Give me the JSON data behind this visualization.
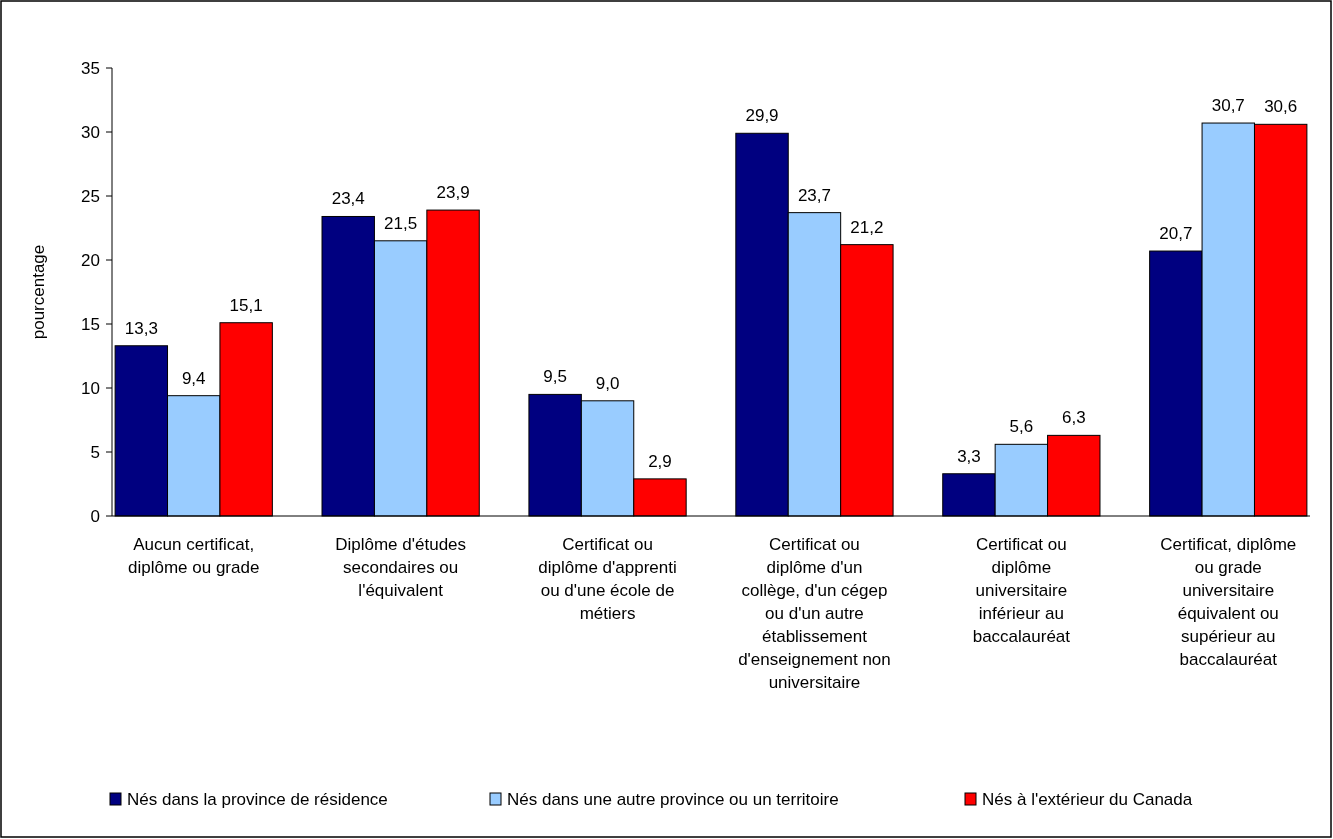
{
  "chart_data": {
    "type": "bar",
    "ylabel": "pourcentage",
    "categories": [
      "Aucun certificat, diplôme ou grade",
      "Diplôme d'études secondaires ou l'équivalent",
      "Certificat ou diplôme d'apprenti ou d'une école de métiers",
      "Certificat ou diplôme d'un collège, d'un cégep ou d'un autre établissement d'enseignement non universitaire",
      "Certificat ou diplôme universitaire inférieur au baccalauréat",
      "Certificat, diplôme ou grade universitaire équivalent ou supérieur au baccalauréat"
    ],
    "series": [
      {
        "name": "Nés dans la province de résidence",
        "color": "#000080",
        "values": [
          13.3,
          23.4,
          9.5,
          29.9,
          3.3,
          20.7
        ],
        "value_labels": [
          "13,3",
          "23,4",
          "9,5",
          "29,9",
          "3,3",
          "20,7"
        ]
      },
      {
        "name": "Nés dans une autre province ou un territoire",
        "color": "#99ccff",
        "values": [
          9.4,
          21.5,
          9.0,
          23.7,
          5.6,
          30.7
        ],
        "value_labels": [
          "9,4",
          "21,5",
          "9,0",
          "23,7",
          "5,6",
          "30,7"
        ]
      },
      {
        "name": "Nés à l'extérieur du Canada",
        "color": "#ff0000",
        "values": [
          15.1,
          23.9,
          2.9,
          21.2,
          6.3,
          30.6
        ],
        "value_labels": [
          "15,1",
          "23,9",
          "2,9",
          "21,2",
          "6,3",
          "30,6"
        ]
      }
    ],
    "ylim": [
      0,
      35
    ],
    "yticks": [
      0,
      5,
      10,
      15,
      20,
      25,
      30,
      35
    ],
    "grid": false,
    "legend": "bottom"
  }
}
